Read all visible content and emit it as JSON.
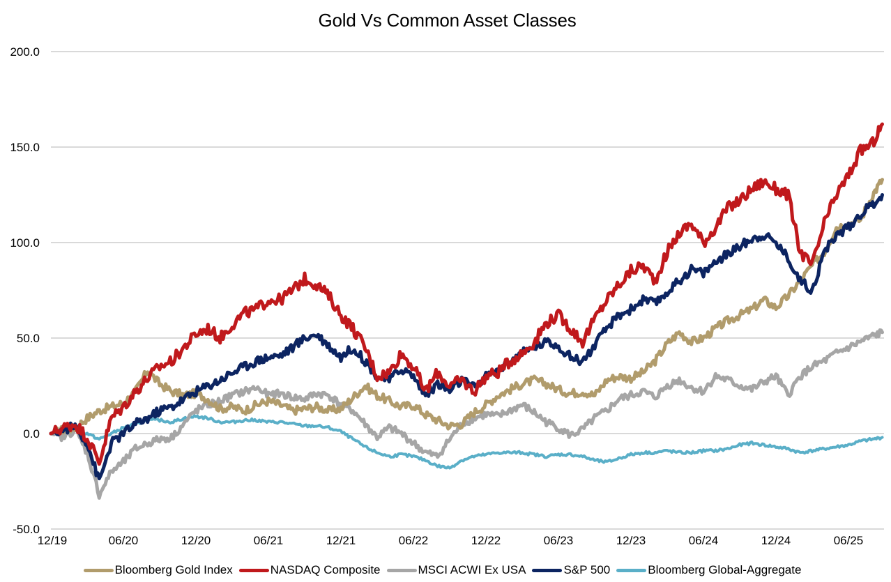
{
  "chart_data": {
    "type": "line",
    "title": "Gold Vs Common Asset Classes",
    "xlabel": "",
    "ylabel": "",
    "ylim": [
      -50,
      200
    ],
    "yticks": [
      "200.0",
      "150.0",
      "100.0",
      "50.0",
      "0.0",
      "-50.0"
    ],
    "ytick_values": [
      200,
      150,
      100,
      50,
      0,
      -50
    ],
    "xticks": [
      "12/19",
      "06/20",
      "12/20",
      "06/21",
      "12/21",
      "06/22",
      "12/22",
      "06/23",
      "12/23",
      "06/24",
      "12/24",
      "06/25"
    ],
    "x_start": "12/19",
    "x_end": "09/25",
    "x_unit": "months since 12/19",
    "xlim": [
      0,
      68.8
    ],
    "grid": true,
    "legend_position": "bottom",
    "x": [
      0,
      1,
      2,
      3,
      4,
      5,
      6,
      7,
      8,
      9,
      10,
      11,
      12,
      13,
      14,
      15,
      16,
      17,
      18,
      19,
      20,
      21,
      22,
      23,
      24,
      25,
      26,
      27,
      28,
      29,
      30,
      31,
      32,
      33,
      34,
      35,
      36,
      37,
      38,
      39,
      40,
      41,
      42,
      43,
      44,
      45,
      46,
      47,
      48,
      49,
      50,
      51,
      52,
      53,
      54,
      55,
      56,
      57,
      58,
      59,
      60,
      61,
      62,
      63,
      64,
      65,
      66,
      67,
      68,
      68.8
    ],
    "series": [
      {
        "name": "Bloomberg Gold Index",
        "color": "#b19c6c",
        "values": [
          0,
          2,
          3,
          8,
          12,
          14,
          16,
          22,
          33,
          26,
          22,
          20,
          21,
          18,
          13,
          14,
          12,
          15,
          17,
          15,
          12,
          13,
          14,
          12,
          13,
          19,
          25,
          20,
          17,
          14,
          15,
          10,
          7,
          4,
          5,
          11,
          15,
          20,
          23,
          26,
          28,
          26,
          23,
          21,
          22,
          20,
          28,
          30,
          29,
          32,
          38,
          47,
          53,
          48,
          50,
          55,
          59,
          62,
          65,
          70,
          66,
          72,
          80,
          88,
          95,
          108,
          110,
          112,
          125,
          133
        ]
      },
      {
        "name": "NASDAQ Composite",
        "color": "#c0191c",
        "values": [
          0,
          3,
          5,
          -2,
          -15,
          8,
          14,
          22,
          29,
          35,
          38,
          45,
          52,
          55,
          50,
          57,
          63,
          65,
          70,
          70,
          75,
          81,
          78,
          72,
          62,
          55,
          45,
          30,
          32,
          42,
          35,
          22,
          32,
          25,
          28,
          22,
          30,
          32,
          38,
          42,
          48,
          58,
          62,
          55,
          48,
          60,
          70,
          78,
          85,
          88,
          80,
          95,
          105,
          110,
          100,
          108,
          118,
          122,
          128,
          132,
          128,
          125,
          95,
          88,
          110,
          125,
          135,
          148,
          152,
          162
        ]
      },
      {
        "name": "MSCI ACWI Ex USA",
        "color": "#a6a6a6",
        "values": [
          0,
          -2,
          2,
          -10,
          -32,
          -20,
          -15,
          -8,
          -5,
          -3,
          -2,
          5,
          12,
          15,
          17,
          20,
          22,
          24,
          20,
          21,
          19,
          18,
          21,
          20,
          15,
          12,
          5,
          -2,
          3,
          0,
          -5,
          -10,
          -12,
          -3,
          5,
          8,
          10,
          9,
          12,
          15,
          11,
          6,
          3,
          -1,
          2,
          8,
          12,
          18,
          20,
          22,
          19,
          25,
          28,
          24,
          22,
          30,
          28,
          25,
          23,
          27,
          30,
          20,
          30,
          35,
          38,
          42,
          45,
          48,
          51,
          53
        ]
      },
      {
        "name": "S&P 500",
        "color": "#0c2461",
        "values": [
          0,
          2,
          4,
          -5,
          -25,
          -5,
          0,
          5,
          8,
          12,
          14,
          18,
          22,
          25,
          28,
          32,
          35,
          38,
          40,
          41,
          45,
          50,
          52,
          46,
          40,
          45,
          38,
          30,
          28,
          34,
          30,
          20,
          26,
          22,
          28,
          24,
          30,
          33,
          38,
          42,
          45,
          48,
          46,
          40,
          38,
          46,
          55,
          62,
          65,
          70,
          68,
          74,
          80,
          86,
          84,
          90,
          94,
          98,
          102,
          104,
          100,
          92,
          80,
          75,
          95,
          104,
          108,
          115,
          120,
          125
        ]
      },
      {
        "name": "Bloomberg Global-Aggregate",
        "color": "#5aafc8",
        "values": [
          0,
          1,
          2,
          0,
          -3,
          0,
          3,
          5,
          7,
          7,
          6,
          8,
          9,
          8,
          6,
          6,
          7,
          7,
          6,
          6,
          5,
          4,
          4,
          3,
          1,
          -3,
          -7,
          -10,
          -12,
          -11,
          -12,
          -14,
          -17,
          -18,
          -14,
          -12,
          -11,
          -10,
          -10,
          -10,
          -11,
          -12,
          -11,
          -11,
          -12,
          -14,
          -15,
          -13,
          -11,
          -10,
          -10,
          -9,
          -10,
          -10,
          -9,
          -9,
          -8,
          -6,
          -5,
          -6,
          -7,
          -8,
          -10,
          -9,
          -8,
          -7,
          -6,
          -4,
          -3,
          -2
        ]
      }
    ]
  }
}
